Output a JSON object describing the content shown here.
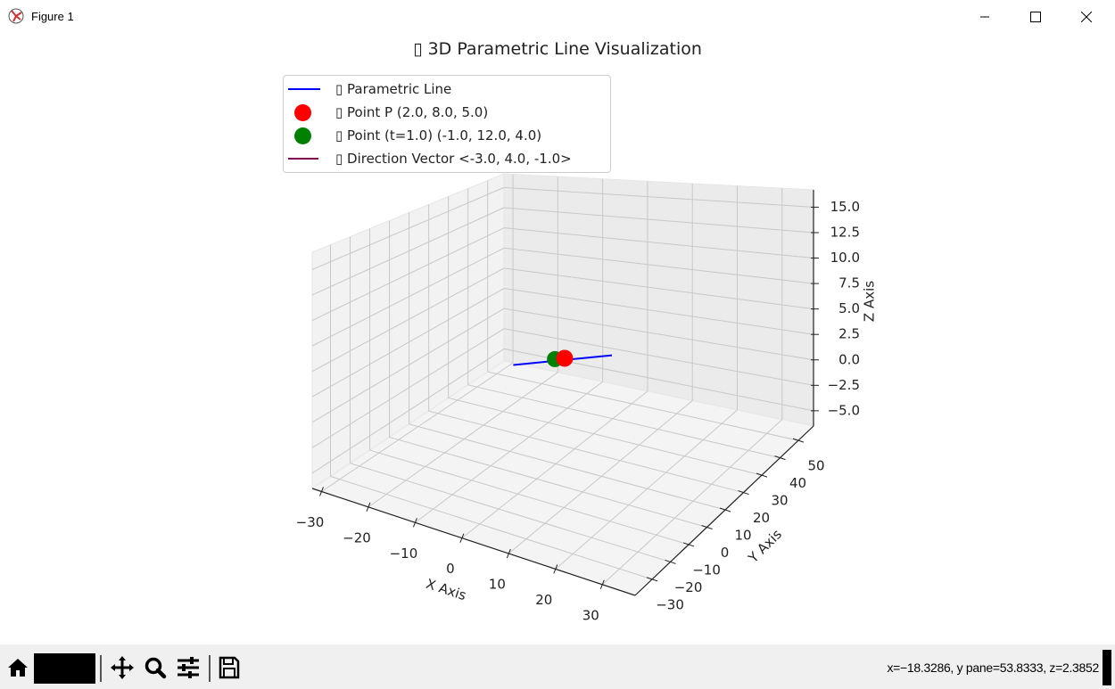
{
  "window": {
    "title": "Figure 1",
    "controls": [
      "minimize",
      "maximize",
      "close"
    ]
  },
  "toolbar": {
    "buttons": [
      "home-icon",
      "back-forward-hidden",
      "pan-icon",
      "zoom-icon",
      "configure-icon",
      "save-icon"
    ],
    "coords": "x=−18.3286, y pane=53.8333, z=2.3852"
  },
  "chart_data": {
    "type": "line3d",
    "title": "▯ 3D Parametric Line Visualization",
    "xlabel": "X Axis",
    "ylabel": "Y Axis",
    "zlabel": "Z Axis",
    "xlim": [
      -32,
      37
    ],
    "ylim": [
      -39.3,
      58.3
    ],
    "zlim": [
      -6.5,
      16.7
    ],
    "xticks": [
      "−30",
      "−20",
      "−10",
      "0",
      "10",
      "20",
      "30"
    ],
    "xtick_values": [
      -30,
      -20,
      -10,
      0,
      10,
      20,
      30
    ],
    "yticks": [
      "−30",
      "−20",
      "−10",
      "0",
      "10",
      "20",
      "30",
      "40",
      "50"
    ],
    "ytick_values": [
      -30,
      -20,
      -10,
      0,
      10,
      20,
      30,
      40,
      50
    ],
    "zticks": [
      "−5.0",
      "−2.5",
      "0.0",
      "2.5",
      "5.0",
      "7.5",
      "10.0",
      "12.5",
      "15.0"
    ],
    "ztick_values": [
      -5,
      -2.5,
      0,
      2.5,
      5,
      7.5,
      10,
      12.5,
      15
    ],
    "grid": true,
    "legend_position": "top-left",
    "series": [
      {
        "name": "▯ Parametric Line",
        "kind": "line",
        "color": "#0000ff",
        "point": [
          2,
          8,
          5
        ],
        "direction": [
          -3,
          4,
          -1
        ],
        "t_range": [
          -8,
          8
        ]
      },
      {
        "name": "▯ Point P (2.0, 8.0, 5.0)",
        "kind": "point",
        "color": "#ff0000",
        "xyz": [
          2,
          8,
          5
        ]
      },
      {
        "name": "▯ Point (t=1.0) (-1.0, 12.0, 4.0)",
        "kind": "point",
        "color": "#008000",
        "xyz": [
          -1,
          12,
          4
        ]
      },
      {
        "name": "▯ Direction Vector <-3.0, 4.0, -1.0>",
        "kind": "arrow",
        "color": "#800050",
        "origin": [
          2,
          8,
          5
        ],
        "vector": [
          -3,
          4,
          -1
        ]
      }
    ]
  }
}
